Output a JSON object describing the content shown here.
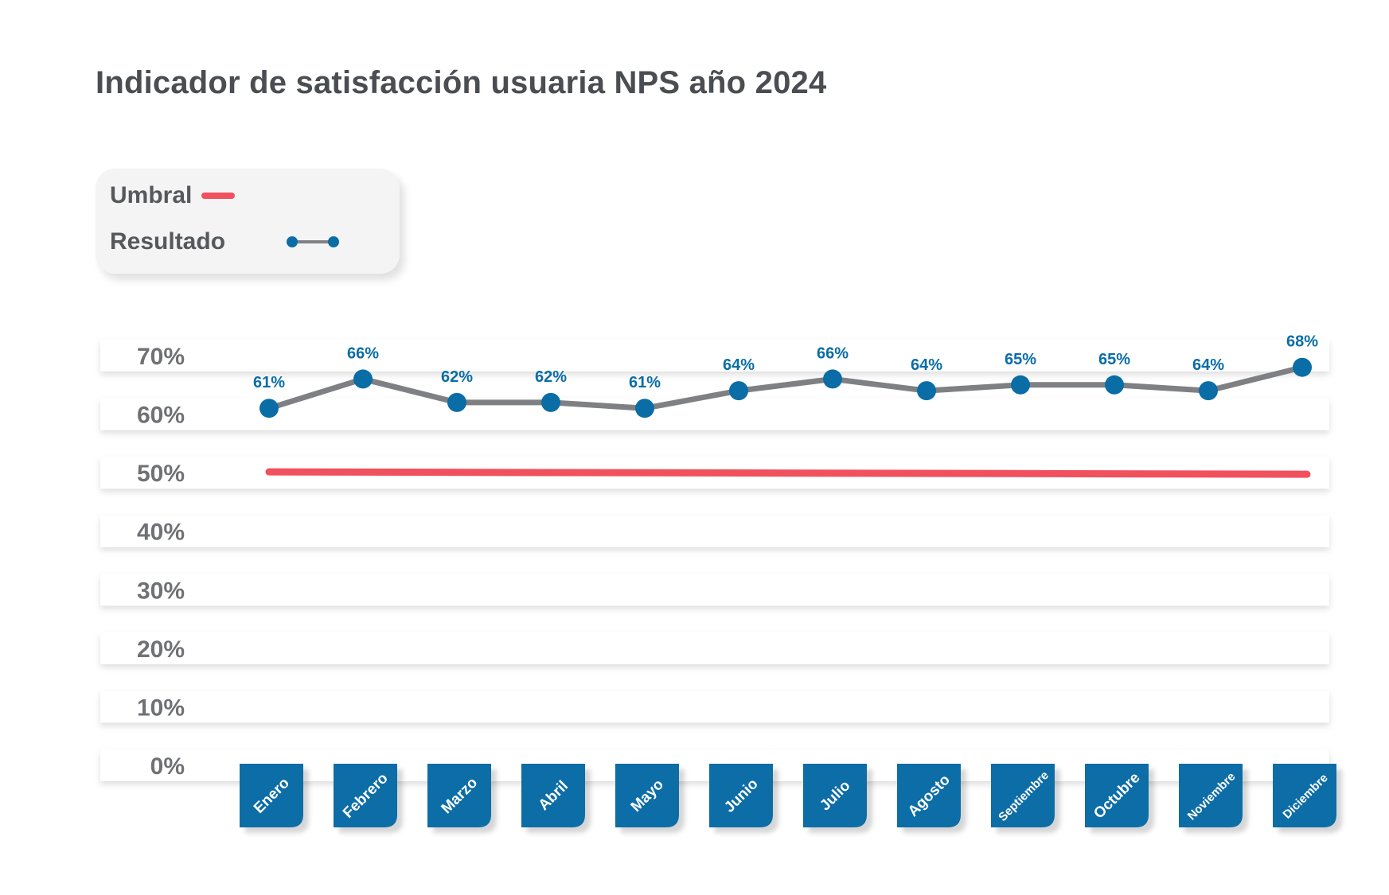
{
  "chart_data": {
    "type": "line",
    "title": "Indicador de satisfacción usuaria NPS año 2024",
    "categories": [
      "Enero",
      "Febrero",
      "Marzo",
      "Abril",
      "Mayo",
      "Junio",
      "Julio",
      "Agosto",
      "Septiembre",
      "Octubre",
      "Noviembre",
      "Diciembre"
    ],
    "series": [
      {
        "name": "Resultado",
        "values": [
          61,
          66,
          62,
          62,
          61,
          64,
          66,
          64,
          65,
          65,
          64,
          68
        ],
        "labels": [
          "61%",
          "66%",
          "62%",
          "62%",
          "61%",
          "64%",
          "66%",
          "64%",
          "65%",
          "65%",
          "64%",
          "68%"
        ],
        "color": "#7f8083",
        "marker_color": "#0a6da6"
      },
      {
        "name": "Umbral",
        "values": [
          50,
          50,
          50,
          50,
          50,
          50,
          50,
          50,
          50,
          50,
          50,
          50
        ],
        "color": "#f0515d"
      }
    ],
    "yticks": [
      "0%",
      "10%",
      "20%",
      "30%",
      "40%",
      "50%",
      "60%",
      "70%"
    ],
    "ylim": [
      0,
      70
    ],
    "legend_position": "top-left",
    "month_tile_color": "#0a6da6",
    "label_color": "#0a6da6"
  },
  "legend": {
    "threshold_label": "Umbral",
    "result_label": "Resultado"
  }
}
